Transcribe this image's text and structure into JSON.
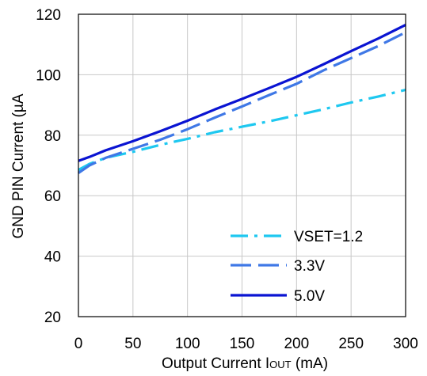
{
  "chart_data": {
    "type": "line",
    "xlabel_main": "Output Current I",
    "xlabel_sub": "OUT",
    "xlabel_tail": " (mA)",
    "ylabel": "GND PIN Current (µA",
    "xlim": [
      0,
      300
    ],
    "ylim": [
      20,
      120
    ],
    "x_ticks": [
      "0",
      "50",
      "100",
      "150",
      "200",
      "250",
      "300"
    ],
    "y_ticks": [
      "20",
      "40",
      "60",
      "80",
      "100",
      "120"
    ],
    "grid": true,
    "legend_position": "bottom-right",
    "series": [
      {
        "name": "VSET=1.2",
        "color": "#1ec8f0",
        "dash": "dashdot",
        "x": [
          0,
          10,
          25,
          50,
          75,
          100,
          125,
          150,
          175,
          200,
          225,
          250,
          275,
          300
        ],
        "y": [
          68.5,
          70.5,
          72.5,
          74.5,
          76.8,
          78.8,
          81.0,
          82.8,
          84.6,
          86.6,
          88.6,
          90.8,
          92.8,
          95.0
        ]
      },
      {
        "name": "3.3V",
        "color": "#3f78e6",
        "dash": "dash",
        "x": [
          0,
          10,
          25,
          50,
          75,
          100,
          125,
          150,
          175,
          200,
          225,
          250,
          275,
          300
        ],
        "y": [
          67.5,
          70.0,
          72.5,
          75.5,
          78.5,
          82.0,
          85.8,
          89.5,
          93.3,
          97.0,
          101.5,
          105.5,
          109.5,
          114.0
        ]
      },
      {
        "name": "5.0V",
        "color": "#0a14d2",
        "dash": "solid",
        "x": [
          0,
          10,
          25,
          50,
          75,
          100,
          125,
          150,
          175,
          200,
          225,
          250,
          275,
          300
        ],
        "y": [
          71.5,
          72.8,
          75.0,
          78.0,
          81.3,
          84.8,
          88.5,
          92.0,
          95.6,
          99.3,
          103.5,
          107.8,
          112.0,
          116.5
        ]
      }
    ]
  }
}
